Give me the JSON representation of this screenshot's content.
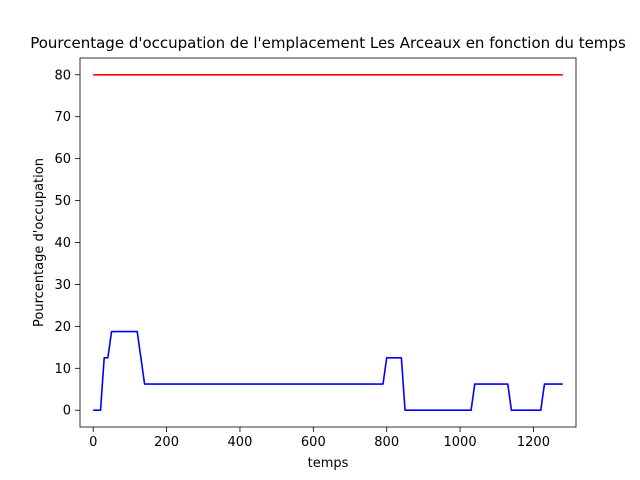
{
  "chart_data": {
    "type": "line",
    "title": "Pourcentage d'occupation de l'emplacement Les Arceaux en fonction du temps",
    "xlabel": "temps",
    "ylabel": "Pourcentage d'occupation",
    "xlim": [
      -36,
      1316
    ],
    "ylim": [
      -4,
      84
    ],
    "xticks": [
      0,
      200,
      400,
      600,
      800,
      1000,
      1200
    ],
    "yticks": [
      0,
      10,
      20,
      30,
      40,
      50,
      60,
      70,
      80
    ],
    "grid": false,
    "legend": "none",
    "series": [
      {
        "color": "#ff0000",
        "x": [
          0,
          1280
        ],
        "y": [
          80,
          80
        ]
      },
      {
        "color": "#0000ff",
        "x": [
          0,
          20,
          30,
          40,
          50,
          60,
          70,
          80,
          90,
          100,
          110,
          120,
          130,
          140,
          150,
          780,
          790,
          800,
          810,
          820,
          830,
          840,
          850,
          860,
          1020,
          1030,
          1040,
          1050,
          1060,
          1120,
          1130,
          1140,
          1150,
          1210,
          1220,
          1230,
          1240,
          1280
        ],
        "y": [
          0,
          0,
          12.5,
          12.5,
          18.75,
          18.75,
          18.75,
          18.75,
          18.75,
          18.75,
          18.75,
          18.75,
          12.5,
          6.25,
          6.25,
          6.25,
          6.25,
          12.5,
          12.5,
          12.5,
          12.5,
          12.5,
          0,
          0,
          0,
          0,
          6.25,
          6.25,
          6.25,
          6.25,
          6.25,
          0,
          0,
          0,
          0,
          6.25,
          6.25,
          6.25
        ]
      }
    ]
  }
}
